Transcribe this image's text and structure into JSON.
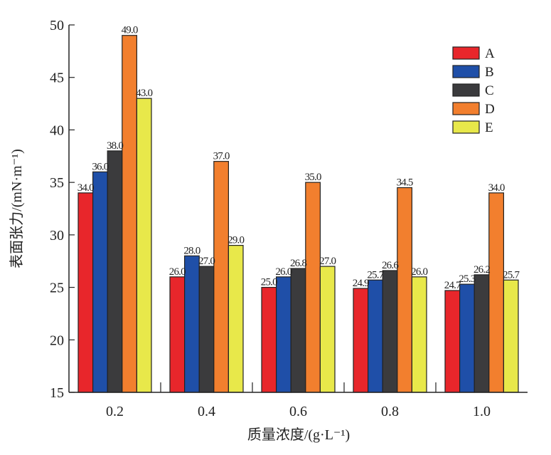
{
  "chart_data": {
    "type": "bar",
    "title": "",
    "xlabel": "质量浓度/(g·L⁻¹)",
    "ylabel": "表面张力/(mN·m⁻¹)",
    "ylim": [
      15,
      50
    ],
    "yticks": [
      15,
      20,
      25,
      30,
      35,
      40,
      45,
      50
    ],
    "categories": [
      "0.2",
      "0.4",
      "0.6",
      "0.8",
      "1.0"
    ],
    "legend_position": "top-right",
    "grid": false,
    "series": [
      {
        "name": "A",
        "color": "#e8262b",
        "values": [
          34.0,
          26.0,
          25.0,
          24.9,
          24.7
        ],
        "labels": [
          "34.0",
          "26.0",
          "25.0",
          "24.9",
          "24.7"
        ]
      },
      {
        "name": "B",
        "color": "#1f4fa8",
        "values": [
          36.0,
          28.0,
          26.0,
          25.7,
          25.3
        ],
        "labels": [
          "36.0",
          "28.0",
          "26.0",
          "25.7",
          "25.3"
        ]
      },
      {
        "name": "C",
        "color": "#3b3b3d",
        "values": [
          38.0,
          27.0,
          26.8,
          26.6,
          26.2
        ],
        "labels": [
          "38.0",
          "27.0",
          "26.8",
          "26.6",
          "26.2"
        ]
      },
      {
        "name": "D",
        "color": "#f27f2e",
        "values": [
          49.0,
          37.0,
          35.0,
          34.5,
          34.0
        ],
        "labels": [
          "49.0",
          "37.0",
          "35.0",
          "34.5",
          "34.0"
        ]
      },
      {
        "name": "E",
        "color": "#e8e84a",
        "values": [
          43.0,
          29.0,
          27.0,
          26.0,
          25.7
        ],
        "labels": [
          "43.0",
          "29.0",
          "27.0",
          "26.0",
          "25.7"
        ]
      }
    ]
  }
}
